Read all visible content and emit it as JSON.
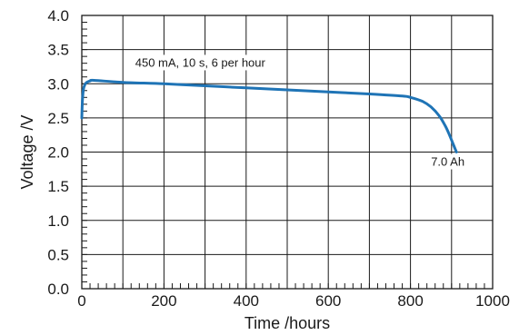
{
  "chart_data": {
    "type": "line",
    "title": "",
    "xlabel": "Time /hours",
    "ylabel": "Voltage /V",
    "xlim": [
      0,
      1000
    ],
    "ylim": [
      0.0,
      4.0
    ],
    "x_ticks": [
      0,
      200,
      400,
      600,
      800,
      1000
    ],
    "x_tick_labels": [
      "0",
      "200",
      "400",
      "600",
      "800",
      "1000"
    ],
    "y_ticks": [
      0.0,
      0.5,
      1.0,
      1.5,
      2.0,
      2.5,
      3.0,
      3.5,
      4.0
    ],
    "y_tick_labels": [
      "0.0",
      "0.5",
      "1.0",
      "1.5",
      "2.0",
      "2.5",
      "3.0",
      "3.5",
      "4.0"
    ],
    "grid": true,
    "legend": "none",
    "line_color": "#1f74b6",
    "series": [
      {
        "x": [
          0,
          1,
          2,
          4,
          7,
          10,
          15,
          20,
          30,
          100,
          200,
          300,
          400,
          500,
          600,
          700,
          780,
          800,
          830,
          850,
          870,
          885,
          895,
          905,
          912
        ],
        "y": [
          2.5,
          2.7,
          2.8,
          2.92,
          2.98,
          3.01,
          3.03,
          3.04,
          3.05,
          3.02,
          3.0,
          2.97,
          2.94,
          2.91,
          2.88,
          2.85,
          2.82,
          2.8,
          2.74,
          2.66,
          2.53,
          2.38,
          2.25,
          2.1,
          2.0
        ]
      }
    ],
    "annotations": [
      {
        "text": "450 mA,  10 s, 6 per hour",
        "x": 130,
        "y": 3.25
      },
      {
        "text": "7.0 Ah",
        "x": 850,
        "y": 1.8
      }
    ]
  }
}
